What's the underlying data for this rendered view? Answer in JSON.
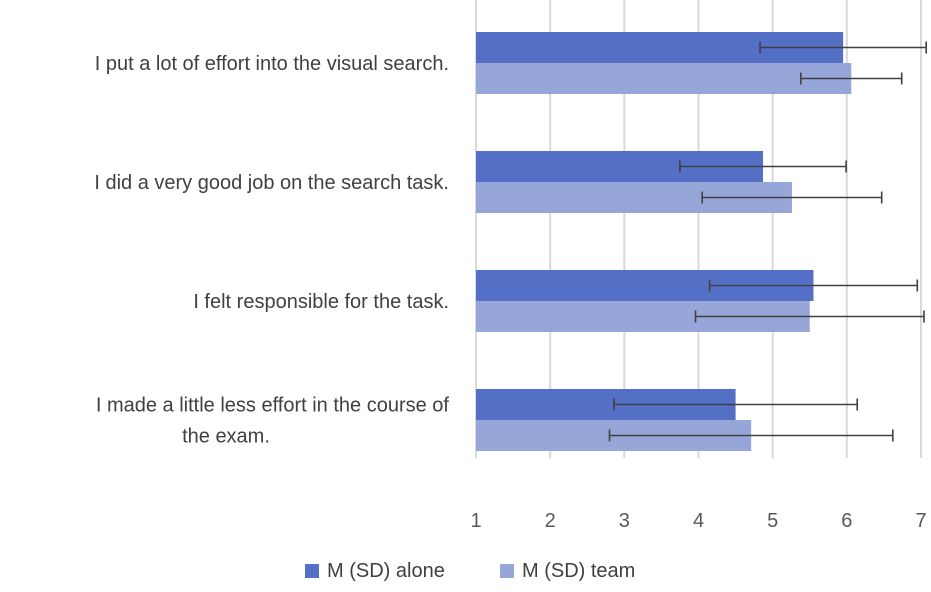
{
  "chart_data": {
    "type": "bar",
    "orientation": "horizontal",
    "categories": [
      [
        "I put a lot of effort into the visual search."
      ],
      [
        "I did a very good job on the search task."
      ],
      [
        "I felt responsible for the task."
      ],
      [
        "I made a little less effort in the course of",
        "the exam."
      ]
    ],
    "series": [
      {
        "name": "M (SD) alone",
        "color": "#5470c6",
        "values": [
          5.95,
          4.87,
          5.55,
          4.5
        ],
        "sd": [
          1.12,
          1.12,
          1.4,
          1.64
        ]
      },
      {
        "name": "M (SD) team",
        "color": "#96a6d8",
        "values": [
          6.06,
          5.26,
          5.5,
          4.71
        ],
        "sd": [
          0.68,
          1.21,
          1.54,
          1.91
        ]
      }
    ],
    "xlim": [
      1,
      7
    ],
    "xticks": [
      "1",
      "2",
      "3",
      "4",
      "5",
      "6",
      "7"
    ],
    "grid": true,
    "legend_position": "bottom"
  }
}
